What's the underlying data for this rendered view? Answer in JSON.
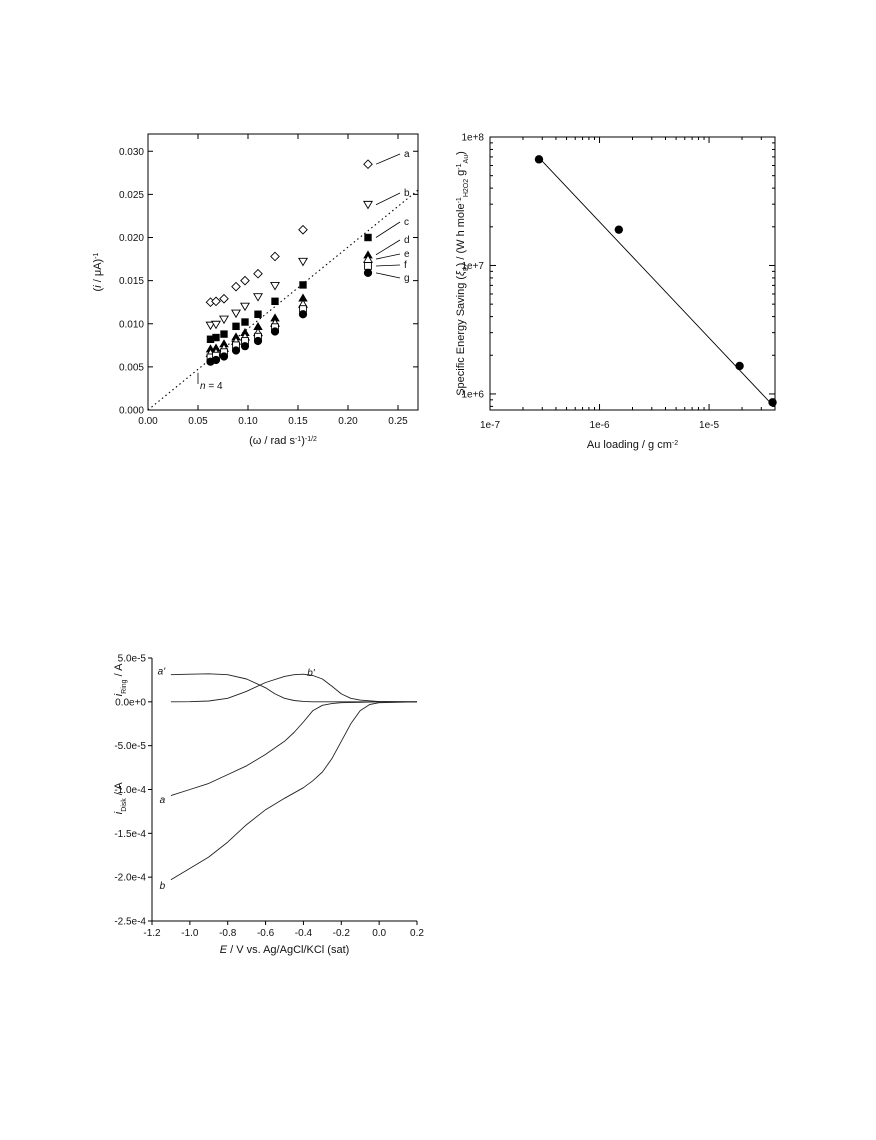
{
  "chart_data": [
    {
      "type": "scatter",
      "xlabel_parts": [
        "(ω / rad s",
        "-1",
        ")",
        "-1/2"
      ],
      "ylabel_parts": [
        "(",
        "i",
        " / μA)",
        "-1"
      ],
      "xlim": [
        0.0,
        0.27
      ],
      "ylim": [
        0.0,
        0.032
      ],
      "xticks": [
        0.0,
        0.05,
        0.1,
        0.15,
        0.2,
        0.25
      ],
      "xtick_labels": [
        "0.00",
        "0.05",
        "0.10",
        "0.15",
        "0.20",
        "0.25"
      ],
      "yticks": [
        0.0,
        0.005,
        0.01,
        0.015,
        0.02,
        0.025,
        0.03
      ],
      "ytick_labels": [
        "0.000",
        "0.005",
        "0.010",
        "0.015",
        "0.020",
        "0.025",
        "0.030"
      ],
      "x": [
        0.0625,
        0.068,
        0.076,
        0.088,
        0.097,
        0.11,
        0.127,
        0.155,
        0.22
      ],
      "series": [
        {
          "name": "a",
          "marker": "diamond-open",
          "values": [
            0.0125,
            0.0126,
            0.0129,
            0.0143,
            0.015,
            0.0158,
            0.0178,
            0.0209,
            0.0285
          ]
        },
        {
          "name": "b",
          "marker": "triangle-down-open",
          "values": [
            0.0098,
            0.0099,
            0.0105,
            0.0112,
            0.012,
            0.0131,
            0.0144,
            0.0172,
            0.0238
          ]
        },
        {
          "name": "c",
          "marker": "square-filled",
          "values": [
            0.0082,
            0.0084,
            0.0088,
            0.0097,
            0.0102,
            0.0111,
            0.0126,
            0.0145,
            0.02
          ]
        },
        {
          "name": "d",
          "marker": "triangle-up-filled",
          "values": [
            0.0071,
            0.0072,
            0.0077,
            0.0085,
            0.009,
            0.0097,
            0.0107,
            0.013,
            0.018
          ]
        },
        {
          "name": "e",
          "marker": "triangle-up-open",
          "values": [
            0.0066,
            0.0067,
            0.0072,
            0.008,
            0.0085,
            0.009,
            0.0101,
            0.0123,
            0.0175
          ]
        },
        {
          "name": "f",
          "marker": "square-open",
          "values": [
            0.0061,
            0.0063,
            0.0067,
            0.0075,
            0.008,
            0.0085,
            0.0096,
            0.0117,
            0.0167
          ]
        },
        {
          "name": "g",
          "marker": "circle-filled",
          "values": [
            0.0056,
            0.0058,
            0.0062,
            0.0069,
            0.0074,
            0.008,
            0.0091,
            0.0111,
            0.0159
          ]
        }
      ],
      "reference_line": {
        "label": "n = 4",
        "x": [
          0.0,
          0.27
        ],
        "y": [
          0.0,
          0.0255
        ],
        "style": "dotted"
      }
    },
    {
      "type": "line",
      "xscale": "log",
      "yscale": "log",
      "xlabel": "Au loading / g cm",
      "xlabel_sup": "-2",
      "ylabel_parts": [
        "Specific Energy Saving (",
        "ξ",
        "E",
        ") / (W h mole",
        "-1",
        "H2O2",
        " g",
        "-1",
        "Au",
        ")"
      ],
      "xlim": [
        1e-07,
        4e-05
      ],
      "ylim": [
        750000.0,
        100000000.0
      ],
      "xtick_labels": [
        "1e-7",
        "1e-6",
        "1e-5"
      ],
      "ytick_labels": [
        "1e+6",
        "1e+7",
        "1e+8"
      ],
      "x": [
        2.8e-07,
        1.5e-06,
        1.9e-05,
        3.8e-05
      ],
      "values": [
        67000000.0,
        19000000.0,
        1650000.0,
        860000.0
      ],
      "fit_line": {
        "x": [
          2.8e-07,
          3.9e-05
        ],
        "y": [
          69000000.0,
          800000.0
        ]
      }
    },
    {
      "type": "line",
      "xlabel_parts": [
        "E",
        " / V vs. Ag/AgCl/KCl (sat)"
      ],
      "ylabel_top_parts": [
        "i",
        "Ring",
        " / A"
      ],
      "ylabel_bottom_parts": [
        "i",
        "Disk",
        " / A"
      ],
      "xlim": [
        -1.2,
        0.2
      ],
      "ylim": [
        -0.00025,
        5e-05
      ],
      "xticks": [
        -1.2,
        -1.0,
        -0.8,
        -0.6,
        -0.4,
        -0.2,
        0.0,
        0.2
      ],
      "xtick_labels": [
        "-1.2",
        "-1.0",
        "-0.8",
        "-0.6",
        "-0.4",
        "-0.2",
        "0.0",
        "0.2"
      ],
      "yticks": [
        5e-05,
        0.0,
        -5e-05,
        -0.0001,
        -0.00015,
        -0.0002,
        -0.00025
      ],
      "ytick_labels": [
        "5.0e-5",
        "0.0e+0",
        "-5.0e-5",
        "-1.0e-4",
        "-1.5e-4",
        "-2.0e-4",
        "-2.5e-4"
      ],
      "series": [
        {
          "name": "a'",
          "x": [
            -1.1,
            -1.0,
            -0.9,
            -0.8,
            -0.7,
            -0.6,
            -0.55,
            -0.5,
            -0.45,
            -0.4,
            -0.35,
            -0.3,
            -0.2,
            -0.1,
            0.0,
            0.2
          ],
          "values": [
            3.1e-05,
            3.15e-05,
            3.2e-05,
            3.1e-05,
            2.6e-05,
            1.6e-05,
            9e-06,
            4e-06,
            1.5e-06,
            5e-07,
            0,
            0,
            0,
            0,
            0,
            0
          ]
        },
        {
          "name": "b'",
          "x": [
            -1.1,
            -1.0,
            -0.9,
            -0.8,
            -0.7,
            -0.6,
            -0.5,
            -0.45,
            -0.4,
            -0.35,
            -0.3,
            -0.25,
            -0.2,
            -0.15,
            -0.1,
            0.0,
            0.2
          ],
          "values": [
            0,
            2e-07,
            1e-06,
            4e-06,
            1.2e-05,
            2.2e-05,
            2.9e-05,
            3.1e-05,
            3.15e-05,
            3e-05,
            2.6e-05,
            1.8e-05,
            9e-06,
            4e-06,
            2e-06,
            3e-07,
            0
          ]
        },
        {
          "name": "a",
          "x": [
            -1.1,
            -1.0,
            -0.9,
            -0.8,
            -0.7,
            -0.6,
            -0.5,
            -0.45,
            -0.4,
            -0.35,
            -0.3,
            -0.25,
            -0.2,
            -0.1,
            0.0,
            0.2
          ],
          "values": [
            -0.000107,
            -0.0001,
            -9.3e-05,
            -8.3e-05,
            -7.3e-05,
            -6e-05,
            -4.5e-05,
            -3.5e-05,
            -2.3e-05,
            -1e-05,
            -4e-06,
            -2e-06,
            -1e-06,
            -5e-07,
            0,
            0
          ]
        },
        {
          "name": "b",
          "x": [
            -1.1,
            -1.0,
            -0.9,
            -0.8,
            -0.7,
            -0.6,
            -0.5,
            -0.4,
            -0.35,
            -0.3,
            -0.25,
            -0.2,
            -0.15,
            -0.1,
            -0.05,
            0.0,
            0.2
          ],
          "values": [
            -0.000203,
            -0.00019,
            -0.000177,
            -0.00016,
            -0.00014,
            -0.000123,
            -0.00011,
            -9.8e-05,
            -9e-05,
            -8e-05,
            -6.5e-05,
            -4.5e-05,
            -2.5e-05,
            -1e-05,
            -3e-06,
            -1e-06,
            0
          ]
        }
      ]
    }
  ]
}
